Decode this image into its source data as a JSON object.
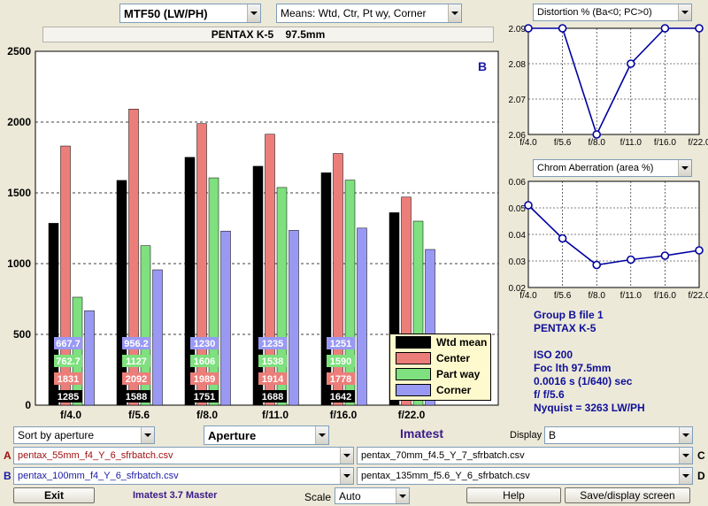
{
  "header": {
    "metric_select": "MTF50 (LW/PH)",
    "means_select": "Means: Wtd, Ctr, Pt wy, Corner",
    "subtitle": "PENTAX K-5    97.5mm"
  },
  "main_chart": {
    "panel_letter": "B",
    "colors": {
      "wtd": "#000000",
      "center": "#ec7e7a",
      "partway": "#7ee07e",
      "corner": "#9999f4"
    }
  },
  "legend": {
    "entries": [
      "Wtd mean",
      "Center",
      "Part way",
      "Corner"
    ]
  },
  "chart_data": [
    {
      "type": "bar",
      "title": "",
      "categories": [
        "f/4.0",
        "f/5.6",
        "f/8.0",
        "f/11.0",
        "f/16.0",
        "f/22.0"
      ],
      "series": [
        {
          "name": "Wtd mean",
          "values": [
            1285,
            1588,
            1751,
            1688,
            1642,
            1360
          ]
        },
        {
          "name": "Center",
          "values": [
            1831,
            2092,
            1989,
            1914,
            1778,
            1470
          ]
        },
        {
          "name": "Part way",
          "values": [
            762.7,
            1127,
            1606,
            1538,
            1590,
            1300
          ]
        },
        {
          "name": "Corner",
          "values": [
            667.7,
            956.2,
            1230,
            1235,
            1251,
            1100
          ]
        }
      ],
      "labeled_count": 5,
      "yticks": [
        0,
        500,
        1000,
        1500,
        2000,
        2500
      ],
      "ylim": [
        0,
        2500
      ],
      "grid": true,
      "legend": "bottom-right"
    },
    {
      "type": "line",
      "title": "Distortion %  (Ba<0; PC>0)",
      "categories": [
        "f/4.0",
        "f/5.6",
        "f/8.0",
        "f/11.0",
        "f/16.0",
        "f/22.0"
      ],
      "values": [
        2.09,
        2.09,
        2.06,
        2.08,
        2.09,
        2.09
      ],
      "yticks": [
        "2.06",
        "2.07",
        "2.08",
        "2.09"
      ],
      "ylim": [
        2.06,
        2.09
      ],
      "grid": true
    },
    {
      "type": "line",
      "title": "Chrom Aberration (area %)",
      "categories": [
        "f/4.0",
        "f/5.6",
        "f/8.0",
        "f/11.0",
        "f/16.0",
        "f/22.0"
      ],
      "values": [
        0.051,
        0.0385,
        0.0285,
        0.0305,
        0.032,
        0.034
      ],
      "yticks": [
        "0.02",
        "0.03",
        "0.04",
        "0.05",
        "0.06"
      ],
      "ylim": [
        0.02,
        0.06
      ],
      "grid": true
    }
  ],
  "info": {
    "lines": [
      "Group B file 1",
      "PENTAX K-5",
      "",
      "ISO  200",
      "Foc lth  97.5mm",
      "0.0016 s  (1/640)  sec",
      "f/  f/5.6",
      "Nyquist = 3263 LW/PH"
    ]
  },
  "controls": {
    "sort_select": "Sort by aperture",
    "aperture_select": "Aperture",
    "brand": "Imatest",
    "display_label": "Display",
    "display_select": "B",
    "files": [
      {
        "letter": "A",
        "value": "pentax_55mm_f4_Y_6_sfrbatch.csv"
      },
      {
        "letter": "B",
        "value": "pentax_100mm_f4_Y_6_sfrbatch.csv"
      },
      {
        "letter": "C",
        "value": "pentax_70mm_f4.5_Y_7_sfrbatch.csv"
      },
      {
        "letter": "D",
        "value": "pentax_135mm_f5.6_Y_6_sfrbatch.csv"
      }
    ],
    "exit_label": "Exit",
    "version": "Imatest 3.7 Master",
    "scale_label": "Scale",
    "scale_select": "Auto",
    "help_label": "Help",
    "save_label": "Save/display screen"
  }
}
